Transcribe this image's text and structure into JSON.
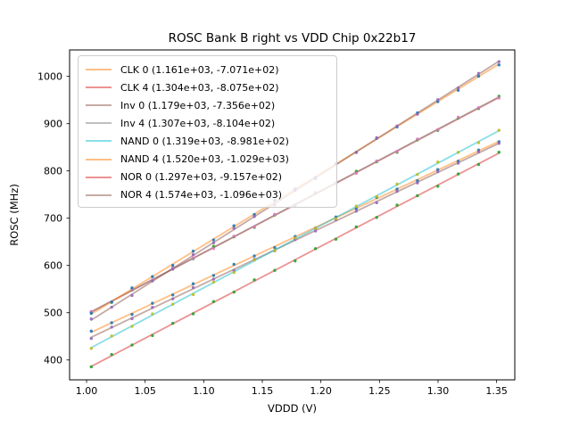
{
  "figure": {
    "title": "ROSC Bank B right vs VDD Chip 0x22b17",
    "background": "#ffffff"
  },
  "axes": {
    "xlabel": "VDDD (V)",
    "ylabel": "ROSC (MHz)",
    "xlim": [
      0.9855,
      1.3655
    ],
    "ylim": [
      358,
      1056
    ],
    "x_tick_values": [
      1.0,
      1.05,
      1.1,
      1.15,
      1.2,
      1.25,
      1.3,
      1.35
    ],
    "x_tick_labels": [
      "1.00",
      "1.05",
      "1.10",
      "1.15",
      "1.20",
      "1.25",
      "1.30",
      "1.35"
    ],
    "y_tick_values": [
      400,
      500,
      600,
      700,
      800,
      900,
      1000
    ],
    "y_tick_labels": [
      "400",
      "500",
      "600",
      "700",
      "800",
      "900",
      "1000"
    ],
    "spine_color": "#000000",
    "tick_label_color": "#000000"
  },
  "legend": {
    "position": "upper-left",
    "border_color": "#cccccc"
  },
  "chart_data": {
    "type": "line",
    "title": "ROSC Bank B right vs VDD Chip 0x22b17",
    "xlabel": "VDDD (V)",
    "ylabel": "ROSC (MHz)",
    "xlim": [
      0.9855,
      1.3655
    ],
    "ylim": [
      358,
      1056
    ],
    "grid": false,
    "legend_position": "upper-left",
    "x_sampling": {
      "start": 1.004,
      "end": 1.352,
      "points": 21
    },
    "fit_note": "legend shows (slope, intercept) of linear fit; line y = slope*x + intercept, MHz vs V",
    "series": [
      {
        "name": "CLK 0",
        "label": "CLK 0 (1.161e+03, -7.071e+02)",
        "slope": 1161,
        "intercept": -707.1,
        "line_color": "#ff7f0e",
        "marker_color": "#1f77b4"
      },
      {
        "name": "CLK 4",
        "label": "CLK 4 (1.304e+03, -8.075e+02)",
        "slope": 1304,
        "intercept": -807.5,
        "line_color": "#d62728",
        "marker_color": "#2ca02c"
      },
      {
        "name": "Inv 0",
        "label": "Inv 0 (1.179e+03, -7.356e+02)",
        "slope": 1179,
        "intercept": -735.6,
        "line_color": "#8c564b",
        "marker_color": "#9467bd"
      },
      {
        "name": "Inv 4",
        "label": "Inv 4 (1.307e+03, -8.104e+02)",
        "slope": 1307,
        "intercept": -810.4,
        "line_color": "#7f7f7f",
        "marker_color": "#e377c2"
      },
      {
        "name": "NAND 0",
        "label": "NAND 0 (1.319e+03, -8.981e+02)",
        "slope": 1319,
        "intercept": -898.1,
        "line_color": "#17becf",
        "marker_color": "#bcbd22"
      },
      {
        "name": "NAND 4",
        "label": "NAND 4 (1.520e+03, -1.029e+03)",
        "slope": 1520,
        "intercept": -1029.0,
        "line_color": "#ff7f0e",
        "marker_color": "#1f77b4"
      },
      {
        "name": "NOR 0",
        "label": "NOR 0 (1.297e+03, -9.157e+02)",
        "slope": 1297,
        "intercept": -915.7,
        "line_color": "#d62728",
        "marker_color": "#2ca02c"
      },
      {
        "name": "NOR 4",
        "label": "NOR 4 (1.574e+03, -1.096e+03)",
        "slope": 1574,
        "intercept": -1096.0,
        "line_color": "#8c564b",
        "marker_color": "#9467bd"
      }
    ],
    "line_alpha": 0.5,
    "marker_alpha": 0.9
  }
}
